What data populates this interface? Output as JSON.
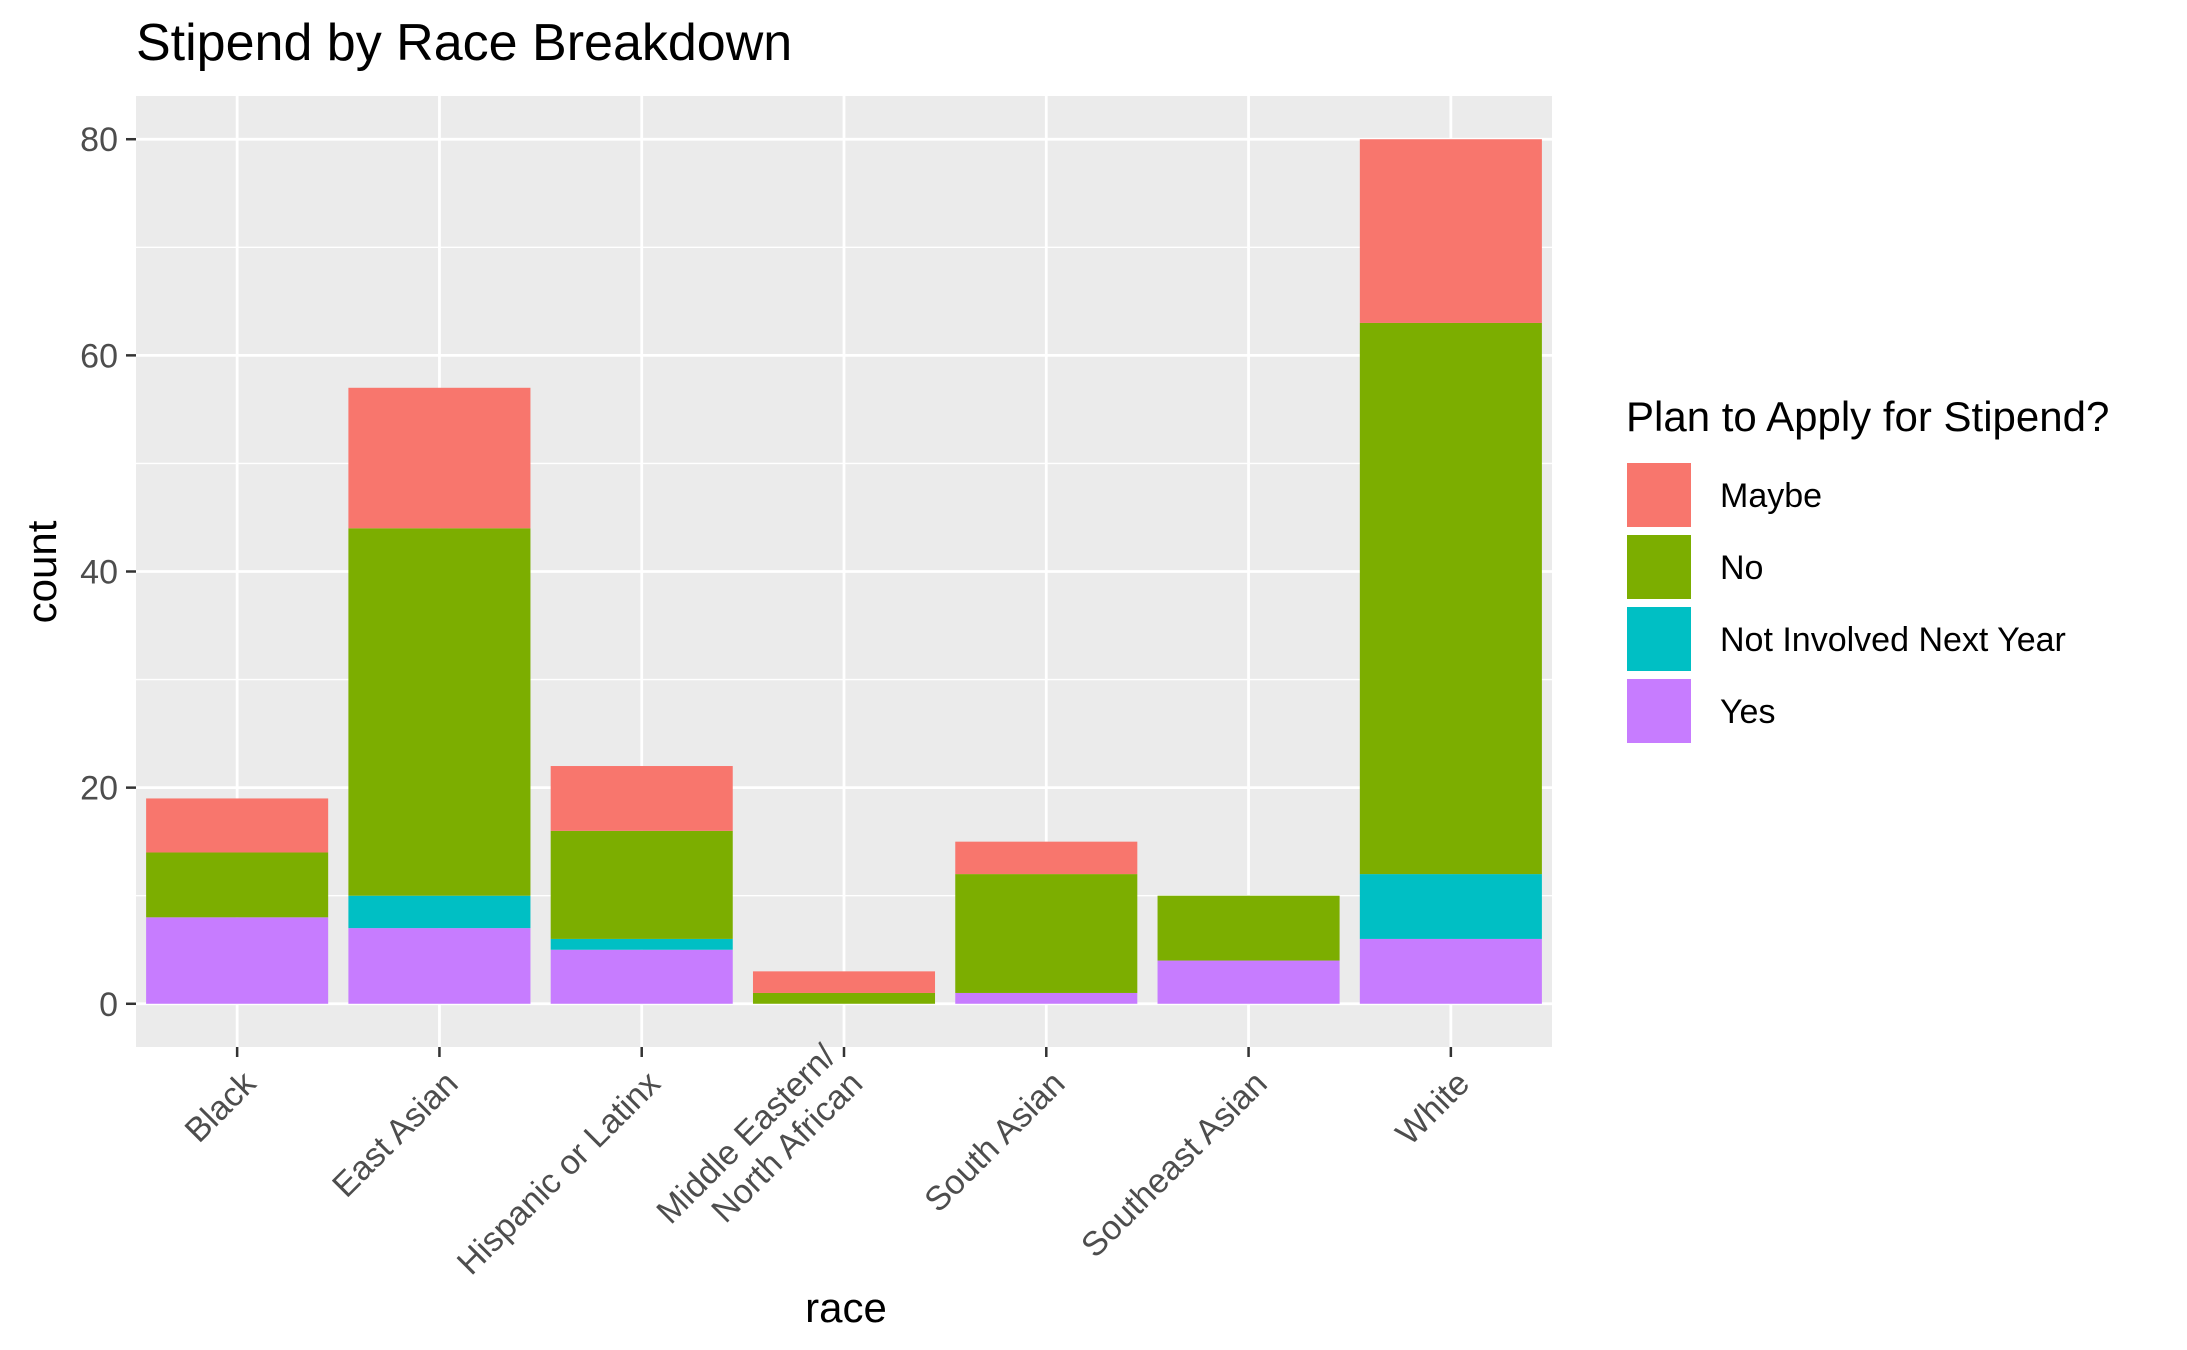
{
  "chart_data": {
    "type": "bar",
    "stacked": true,
    "title": "Stipend by Race Breakdown",
    "xlabel": "race",
    "ylabel": "count",
    "ylim": [
      -4,
      84
    ],
    "yticks": [
      0,
      20,
      40,
      60,
      80
    ],
    "grid": true,
    "categories": [
      [
        "Black"
      ],
      [
        "East Asian"
      ],
      [
        "Hispanic or Latinx"
      ],
      [
        "Middle Eastern/",
        "North African"
      ],
      [
        "South Asian"
      ],
      [
        "Southeast Asian"
      ],
      [
        "White"
      ]
    ],
    "series": [
      {
        "name": "Yes",
        "color": "#C77CFF",
        "values": [
          8,
          7,
          5,
          0,
          1,
          4,
          6
        ]
      },
      {
        "name": "Not Involved Next Year",
        "color": "#00BFC4",
        "values": [
          0,
          3,
          1,
          0,
          0,
          0,
          6
        ]
      },
      {
        "name": "No",
        "color": "#7CAE00",
        "values": [
          6,
          34,
          10,
          1,
          11,
          6,
          51
        ]
      },
      {
        "name": "Maybe",
        "color": "#F8766D",
        "values": [
          5,
          13,
          6,
          2,
          3,
          0,
          17
        ]
      }
    ],
    "legend": {
      "title": "Plan to Apply for Stipend?",
      "position": "right",
      "order": [
        "Maybe",
        "No",
        "Not Involved Next Year",
        "Yes"
      ]
    },
    "panel_background": "#EBEBEB",
    "grid_color": "#FFFFFF"
  }
}
